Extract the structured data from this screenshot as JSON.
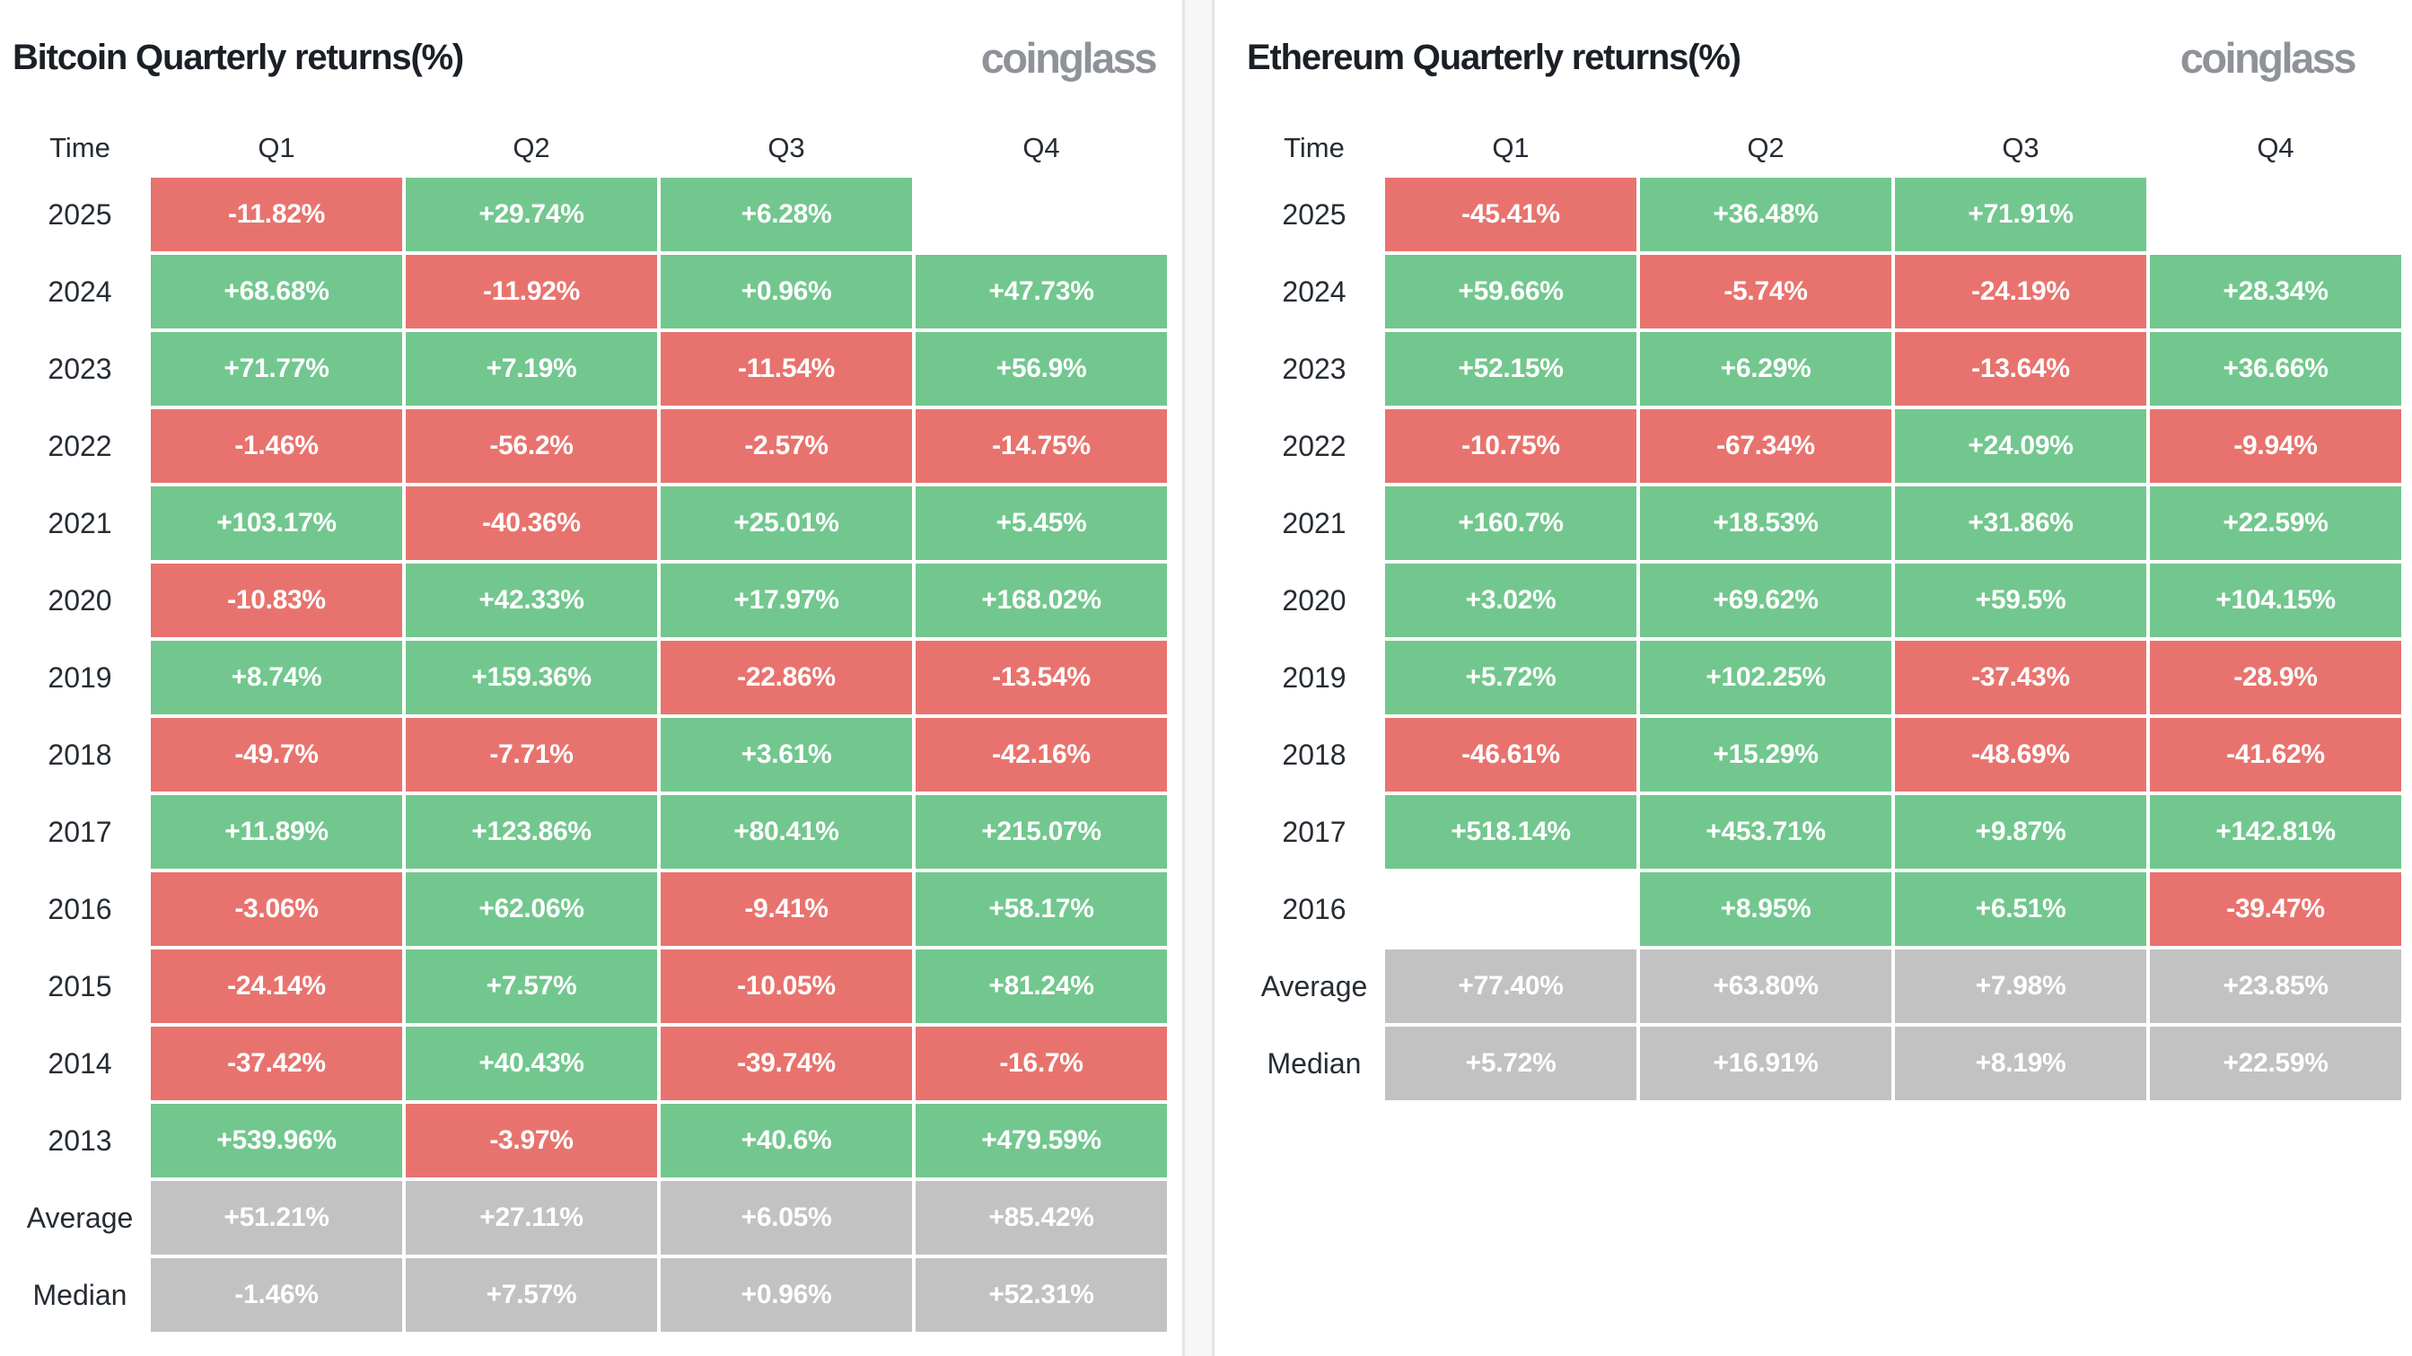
{
  "colors": {
    "green": "#72c78e",
    "red": "#e8736e",
    "gray": "#c2c2c2",
    "title_text": "#1b2026",
    "logo_text": "#8f9399",
    "cell_text": "#ffffff",
    "divider_fill": "#f7f7f8",
    "divider_border": "#e4e4e6"
  },
  "chart_data": [
    {
      "type": "table",
      "title": "Bitcoin Quarterly returns(%)",
      "logo": "coinglass",
      "headers": [
        "Time",
        "Q1",
        "Q2",
        "Q3",
        "Q4"
      ],
      "rows": [
        {
          "label": "2025",
          "cells": [
            {
              "v": "-11.82%",
              "c": "red"
            },
            {
              "v": "+29.74%",
              "c": "green"
            },
            {
              "v": "+6.28%",
              "c": "green"
            },
            {
              "v": "",
              "c": "empty"
            }
          ]
        },
        {
          "label": "2024",
          "cells": [
            {
              "v": "+68.68%",
              "c": "green"
            },
            {
              "v": "-11.92%",
              "c": "red"
            },
            {
              "v": "+0.96%",
              "c": "green"
            },
            {
              "v": "+47.73%",
              "c": "green"
            }
          ]
        },
        {
          "label": "2023",
          "cells": [
            {
              "v": "+71.77%",
              "c": "green"
            },
            {
              "v": "+7.19%",
              "c": "green"
            },
            {
              "v": "-11.54%",
              "c": "red"
            },
            {
              "v": "+56.9%",
              "c": "green"
            }
          ]
        },
        {
          "label": "2022",
          "cells": [
            {
              "v": "-1.46%",
              "c": "red"
            },
            {
              "v": "-56.2%",
              "c": "red"
            },
            {
              "v": "-2.57%",
              "c": "red"
            },
            {
              "v": "-14.75%",
              "c": "red"
            }
          ]
        },
        {
          "label": "2021",
          "cells": [
            {
              "v": "+103.17%",
              "c": "green"
            },
            {
              "v": "-40.36%",
              "c": "red"
            },
            {
              "v": "+25.01%",
              "c": "green"
            },
            {
              "v": "+5.45%",
              "c": "green"
            }
          ]
        },
        {
          "label": "2020",
          "cells": [
            {
              "v": "-10.83%",
              "c": "red"
            },
            {
              "v": "+42.33%",
              "c": "green"
            },
            {
              "v": "+17.97%",
              "c": "green"
            },
            {
              "v": "+168.02%",
              "c": "green"
            }
          ]
        },
        {
          "label": "2019",
          "cells": [
            {
              "v": "+8.74%",
              "c": "green"
            },
            {
              "v": "+159.36%",
              "c": "green"
            },
            {
              "v": "-22.86%",
              "c": "red"
            },
            {
              "v": "-13.54%",
              "c": "red"
            }
          ]
        },
        {
          "label": "2018",
          "cells": [
            {
              "v": "-49.7%",
              "c": "red"
            },
            {
              "v": "-7.71%",
              "c": "red"
            },
            {
              "v": "+3.61%",
              "c": "green"
            },
            {
              "v": "-42.16%",
              "c": "red"
            }
          ]
        },
        {
          "label": "2017",
          "cells": [
            {
              "v": "+11.89%",
              "c": "green"
            },
            {
              "v": "+123.86%",
              "c": "green"
            },
            {
              "v": "+80.41%",
              "c": "green"
            },
            {
              "v": "+215.07%",
              "c": "green"
            }
          ]
        },
        {
          "label": "2016",
          "cells": [
            {
              "v": "-3.06%",
              "c": "red"
            },
            {
              "v": "+62.06%",
              "c": "green"
            },
            {
              "v": "-9.41%",
              "c": "red"
            },
            {
              "v": "+58.17%",
              "c": "green"
            }
          ]
        },
        {
          "label": "2015",
          "cells": [
            {
              "v": "-24.14%",
              "c": "red"
            },
            {
              "v": "+7.57%",
              "c": "green"
            },
            {
              "v": "-10.05%",
              "c": "red"
            },
            {
              "v": "+81.24%",
              "c": "green"
            }
          ]
        },
        {
          "label": "2014",
          "cells": [
            {
              "v": "-37.42%",
              "c": "red"
            },
            {
              "v": "+40.43%",
              "c": "green"
            },
            {
              "v": "-39.74%",
              "c": "red"
            },
            {
              "v": "-16.7%",
              "c": "red"
            }
          ]
        },
        {
          "label": "2013",
          "cells": [
            {
              "v": "+539.96%",
              "c": "green"
            },
            {
              "v": "-3.97%",
              "c": "red"
            },
            {
              "v": "+40.6%",
              "c": "green"
            },
            {
              "v": "+479.59%",
              "c": "green"
            }
          ]
        },
        {
          "label": "Average",
          "cells": [
            {
              "v": "+51.21%",
              "c": "gray"
            },
            {
              "v": "+27.11%",
              "c": "gray"
            },
            {
              "v": "+6.05%",
              "c": "gray"
            },
            {
              "v": "+85.42%",
              "c": "gray"
            }
          ]
        },
        {
          "label": "Median",
          "cells": [
            {
              "v": "-1.46%",
              "c": "gray"
            },
            {
              "v": "+7.57%",
              "c": "gray"
            },
            {
              "v": "+0.96%",
              "c": "gray"
            },
            {
              "v": "+52.31%",
              "c": "gray"
            }
          ]
        }
      ]
    },
    {
      "type": "table",
      "title": "Ethereum Quarterly returns(%)",
      "logo": "coinglass",
      "headers": [
        "Time",
        "Q1",
        "Q2",
        "Q3",
        "Q4"
      ],
      "rows": [
        {
          "label": "2025",
          "cells": [
            {
              "v": "-45.41%",
              "c": "red"
            },
            {
              "v": "+36.48%",
              "c": "green"
            },
            {
              "v": "+71.91%",
              "c": "green"
            },
            {
              "v": "",
              "c": "empty"
            }
          ]
        },
        {
          "label": "2024",
          "cells": [
            {
              "v": "+59.66%",
              "c": "green"
            },
            {
              "v": "-5.74%",
              "c": "red"
            },
            {
              "v": "-24.19%",
              "c": "red"
            },
            {
              "v": "+28.34%",
              "c": "green"
            }
          ]
        },
        {
          "label": "2023",
          "cells": [
            {
              "v": "+52.15%",
              "c": "green"
            },
            {
              "v": "+6.29%",
              "c": "green"
            },
            {
              "v": "-13.64%",
              "c": "red"
            },
            {
              "v": "+36.66%",
              "c": "green"
            }
          ]
        },
        {
          "label": "2022",
          "cells": [
            {
              "v": "-10.75%",
              "c": "red"
            },
            {
              "v": "-67.34%",
              "c": "red"
            },
            {
              "v": "+24.09%",
              "c": "green"
            },
            {
              "v": "-9.94%",
              "c": "red"
            }
          ]
        },
        {
          "label": "2021",
          "cells": [
            {
              "v": "+160.7%",
              "c": "green"
            },
            {
              "v": "+18.53%",
              "c": "green"
            },
            {
              "v": "+31.86%",
              "c": "green"
            },
            {
              "v": "+22.59%",
              "c": "green"
            }
          ]
        },
        {
          "label": "2020",
          "cells": [
            {
              "v": "+3.02%",
              "c": "green"
            },
            {
              "v": "+69.62%",
              "c": "green"
            },
            {
              "v": "+59.5%",
              "c": "green"
            },
            {
              "v": "+104.15%",
              "c": "green"
            }
          ]
        },
        {
          "label": "2019",
          "cells": [
            {
              "v": "+5.72%",
              "c": "green"
            },
            {
              "v": "+102.25%",
              "c": "green"
            },
            {
              "v": "-37.43%",
              "c": "red"
            },
            {
              "v": "-28.9%",
              "c": "red"
            }
          ]
        },
        {
          "label": "2018",
          "cells": [
            {
              "v": "-46.61%",
              "c": "red"
            },
            {
              "v": "+15.29%",
              "c": "green"
            },
            {
              "v": "-48.69%",
              "c": "red"
            },
            {
              "v": "-41.62%",
              "c": "red"
            }
          ]
        },
        {
          "label": "2017",
          "cells": [
            {
              "v": "+518.14%",
              "c": "green"
            },
            {
              "v": "+453.71%",
              "c": "green"
            },
            {
              "v": "+9.87%",
              "c": "green"
            },
            {
              "v": "+142.81%",
              "c": "green"
            }
          ]
        },
        {
          "label": "2016",
          "cells": [
            {
              "v": "",
              "c": "empty"
            },
            {
              "v": "+8.95%",
              "c": "green"
            },
            {
              "v": "+6.51%",
              "c": "green"
            },
            {
              "v": "-39.47%",
              "c": "red"
            }
          ]
        },
        {
          "label": "Average",
          "cells": [
            {
              "v": "+77.40%",
              "c": "gray"
            },
            {
              "v": "+63.80%",
              "c": "gray"
            },
            {
              "v": "+7.98%",
              "c": "gray"
            },
            {
              "v": "+23.85%",
              "c": "gray"
            }
          ]
        },
        {
          "label": "Median",
          "cells": [
            {
              "v": "+5.72%",
              "c": "gray"
            },
            {
              "v": "+16.91%",
              "c": "gray"
            },
            {
              "v": "+8.19%",
              "c": "gray"
            },
            {
              "v": "+22.59%",
              "c": "gray"
            }
          ]
        }
      ]
    }
  ]
}
